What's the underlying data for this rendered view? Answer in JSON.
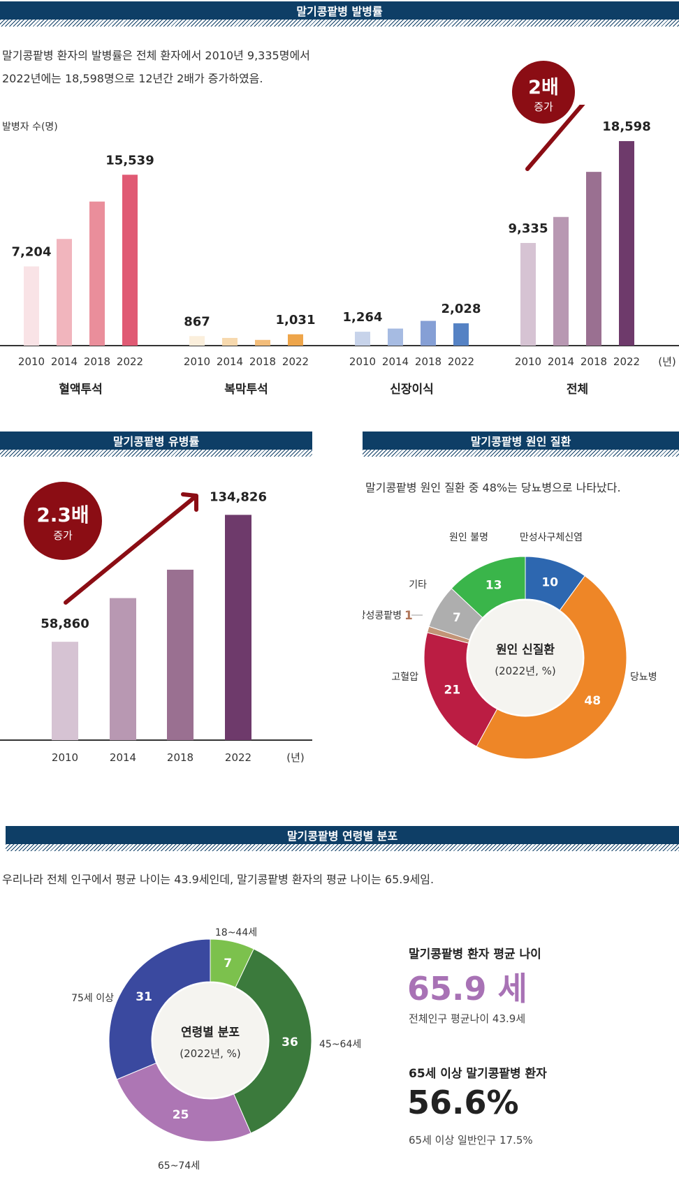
{
  "section1": {
    "banner": "말기콩팥병 발병률",
    "desc_line1": "말기콩팥병 환자의 발병률은 전체 환자에서 2010년 9,335명에서",
    "desc_line2": "2022년에는 18,598명으로 12년간 2배가 증가하였음.",
    "ylabel": "발병자 수(명)",
    "unit": "(년)",
    "badge_big": "2배",
    "badge_small": "증가"
  },
  "section2": {
    "banner": "말기콩팥병 유병률",
    "unit": "(년)",
    "badge_big": "2.3배",
    "badge_small": "증가"
  },
  "section3": {
    "banner": "말기콩팥병 원인 질환",
    "desc": "말기콩팥병 원인 질환 중 48%는 당뇨병으로 나타났다.",
    "center_title": "원인 신질환",
    "center_sub": "(2022년, %)"
  },
  "section4": {
    "banner": "말기콩팥병 연령별 분포",
    "desc": "우리나라 전체 인구에서 평균 나이는 43.9세인데, 말기콩팥병 환자의 평균 나이는 65.9세임.",
    "center_title": "연령별 분포",
    "center_sub": "(2022년, %)",
    "stat1_title": "말기콩팥병 환자 평균 나이",
    "stat1_value": "65.9 세",
    "stat1_sub": "전체인구 평균나이 43.9세",
    "stat2_title": "65세 이상 말기콩팥병 환자",
    "stat2_value": "56.6%",
    "stat2_sub": "65세 이상 일반인구 17.5%"
  },
  "chart_data": [
    {
      "type": "bar",
      "title": "말기콩팥병 발병률",
      "ylabel": "발병자 수(명)",
      "x_unit": "(년)",
      "categories": [
        "2010",
        "2014",
        "2018",
        "2022"
      ],
      "groups": [
        {
          "name": "혈액투석",
          "values": [
            7204,
            9700,
            13100,
            15539
          ],
          "labels": [
            "7,204",
            "",
            "",
            "15,539"
          ],
          "colors": [
            "#f9e3e6",
            "#f1b5bd",
            "#ea8e9b",
            "#e05a74"
          ]
        },
        {
          "name": "복막투석",
          "values": [
            867,
            700,
            520,
            1031
          ],
          "labels": [
            "867",
            "",
            "",
            "1,031"
          ],
          "colors": [
            "#fbefdc",
            "#f7d9ae",
            "#f3bd7a",
            "#eea54a"
          ]
        },
        {
          "name": "신장이식",
          "values": [
            1264,
            1550,
            2250,
            2028
          ],
          "labels": [
            "1,264",
            "",
            "",
            "2,028"
          ],
          "colors": [
            "#c7d3ea",
            "#a6bbe2",
            "#859fd5",
            "#5582c4"
          ]
        },
        {
          "name": "전체",
          "values": [
            9335,
            11700,
            15800,
            18598
          ],
          "labels": [
            "9,335",
            "",
            "",
            "18,598"
          ],
          "colors": [
            "#d6c3d3",
            "#b898b2",
            "#9a7091",
            "#6e3a6b"
          ]
        }
      ]
    },
    {
      "type": "bar",
      "title": "말기콩팥병 유병률",
      "x_unit": "(년)",
      "categories": [
        "2010",
        "2014",
        "2018",
        "2022"
      ],
      "values": [
        58860,
        85000,
        102000,
        134826
      ],
      "labels": [
        "58,860",
        "",
        "",
        "134,826"
      ],
      "colors": [
        "#d6c3d3",
        "#b898b2",
        "#9a7091",
        "#6e3a6b"
      ]
    },
    {
      "type": "pie",
      "title": "원인 신질환",
      "subtitle": "(2022년, %)",
      "slices": [
        {
          "label": "만성사구체신염",
          "value": 10,
          "color": "#2d67b0"
        },
        {
          "label": "당뇨병",
          "value": 48,
          "color": "#ee8627"
        },
        {
          "label": "고혈압",
          "value": 21,
          "color": "#bb1d43"
        },
        {
          "label": "낭성콩팥병",
          "value": 1,
          "color": "#c29477"
        },
        {
          "label": "기타",
          "value": 7,
          "color": "#aeaeae"
        },
        {
          "label": "원인 불명",
          "value": 13,
          "color": "#3ab54a"
        }
      ]
    },
    {
      "type": "pie",
      "title": "연령별 분포",
      "subtitle": "(2022년, %)",
      "slices": [
        {
          "label": "18~44세",
          "value": 7,
          "color": "#7cc14d"
        },
        {
          "label": "45~64세",
          "value": 36,
          "color": "#3b7a3c"
        },
        {
          "label": "65~74세",
          "value": 25,
          "color": "#ad76b4"
        },
        {
          "label": "75세 이상",
          "value": 31,
          "color": "#3a499f"
        }
      ]
    }
  ]
}
